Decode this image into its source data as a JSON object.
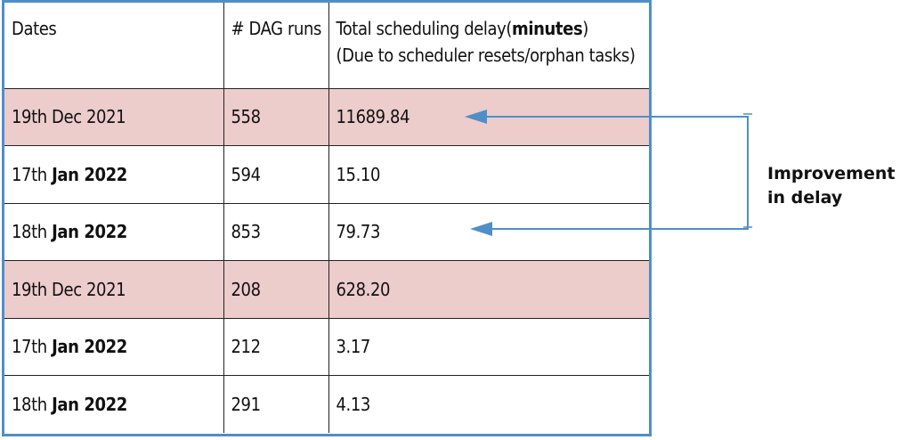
{
  "table": {
    "headers": {
      "dates": "Dates",
      "dag_runs": "# DAG runs",
      "delay_prefix": "Total scheduling delay(",
      "delay_bold": "minutes",
      "delay_suffix": ")",
      "delay_line2": "(Due to scheduler resets/orphan tasks)"
    },
    "rows": [
      {
        "day": "19th Dec 2021",
        "month_year": "",
        "dag_runs": "558",
        "delay": "11689.84",
        "highlight": true
      },
      {
        "day": "17th",
        "month_year": "Jan 2022",
        "dag_runs": "594",
        "delay": "15.10",
        "highlight": false
      },
      {
        "day": "18th",
        "month_year": "Jan 2022",
        "dag_runs": "853",
        "delay": "79.73",
        "highlight": false
      },
      {
        "day": "19th Dec 2021",
        "month_year": "",
        "dag_runs": "208",
        "delay": "628.20",
        "highlight": true
      },
      {
        "day": "17th",
        "month_year": "Jan 2022",
        "dag_runs": "212",
        "delay": "3.17",
        "highlight": false
      },
      {
        "day": "18th",
        "month_year": "Jan 2022",
        "dag_runs": "291",
        "delay": "4.13",
        "highlight": false
      }
    ],
    "highlight_color": "#edcccc",
    "border_color": "#4e8fc8"
  },
  "annotation": {
    "line1": "Improvement",
    "line2": "in delay",
    "arrow_color": "#4e8fc8"
  }
}
